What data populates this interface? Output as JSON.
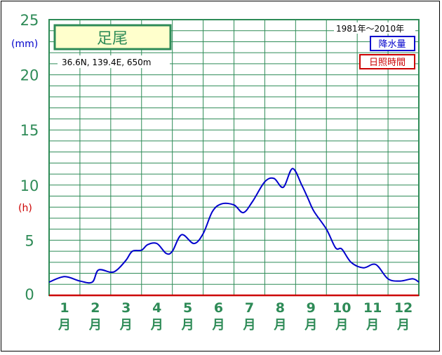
{
  "chart_data": {
    "type": "line",
    "title": "足尾",
    "location": "36.6N,  139.4E,  650m",
    "period": "1981年〜2010年",
    "legend": [
      {
        "label": "降水量",
        "color": "#0000cc"
      },
      {
        "label": "日照時間",
        "color": "#cc0000"
      }
    ],
    "y_unit_left": "(mm)",
    "y_unit_hours": "(h)",
    "ylim": [
      0,
      25
    ],
    "yticks": [
      "0",
      "5",
      "10",
      "15",
      "20",
      "25"
    ],
    "months": [
      "1",
      "2",
      "3",
      "4",
      "5",
      "6",
      "7",
      "8",
      "9",
      "10",
      "11",
      "12"
    ],
    "month_suffix": "月",
    "series": [
      {
        "name": "降水量",
        "color": "#0000cc",
        "x": [
          1.0,
          1.5,
          2.0,
          2.4,
          2.6,
          3.0,
          3.2,
          3.5,
          3.7,
          4.0,
          4.2,
          4.5,
          4.8,
          5.0,
          5.3,
          5.7,
          6.0,
          6.3,
          6.6,
          7.0,
          7.3,
          7.6,
          8.0,
          8.3,
          8.6,
          8.9,
          9.2,
          9.4,
          9.6,
          10.0,
          10.3,
          10.5,
          10.8,
          11.2,
          11.6,
          12.0,
          12.4,
          12.8,
          13.0
        ],
        "values": [
          1.2,
          1.7,
          1.3,
          1.2,
          2.3,
          2.1,
          2.3,
          3.2,
          4.0,
          4.1,
          4.6,
          4.7,
          3.8,
          4.0,
          5.5,
          4.7,
          5.6,
          7.6,
          8.3,
          8.2,
          7.5,
          8.5,
          10.3,
          10.6,
          9.8,
          11.5,
          10.0,
          8.8,
          7.6,
          6.0,
          4.3,
          4.2,
          3.0,
          2.5,
          2.8,
          1.5,
          1.3,
          1.5,
          1.2
        ]
      },
      {
        "name": "日照時間",
        "color": "#cc0000",
        "x": [
          1.0,
          13.0
        ],
        "values": [
          0,
          0
        ]
      }
    ]
  }
}
